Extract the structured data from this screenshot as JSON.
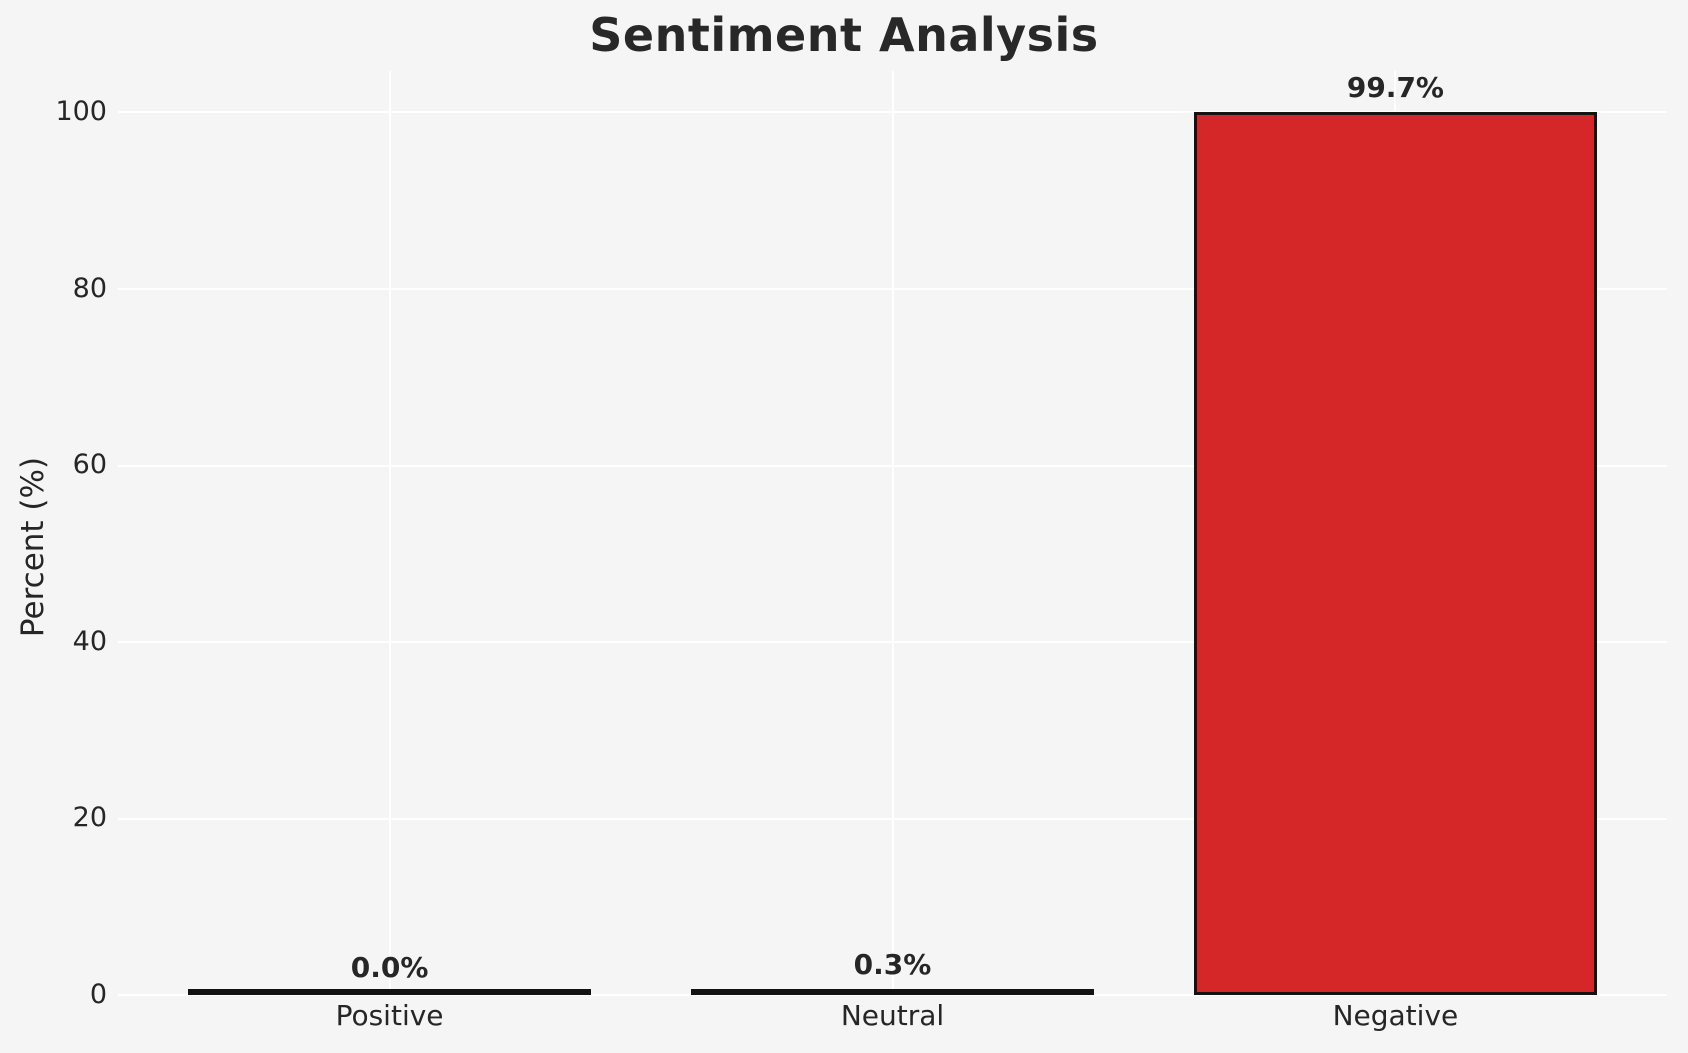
{
  "chart_data": {
    "type": "bar",
    "title": "Sentiment Analysis",
    "xlabel": "",
    "ylabel": "Percent (%)",
    "categories": [
      "Positive",
      "Neutral",
      "Negative"
    ],
    "values": [
      0.0,
      0.3,
      99.7
    ],
    "value_labels": [
      "0.0%",
      "0.3%",
      "99.7%"
    ],
    "yticks": [
      "0",
      "20",
      "40",
      "60",
      "80",
      "100"
    ],
    "ytick_values": [
      0,
      20,
      40,
      60,
      80,
      100
    ],
    "ylim": [
      0,
      104.7
    ],
    "grid": "on",
    "gridline_orientation": "horizontal-and-vertical",
    "legend_position": "none",
    "colors": {
      "bar_fill_negative": "#d62728",
      "bar_edge": "#131313",
      "background": "#f5f5f5",
      "gridline": "#ffffff",
      "text": "#262626"
    }
  }
}
